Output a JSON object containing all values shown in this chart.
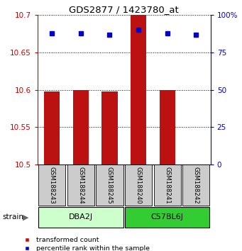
{
  "title": "GDS2877 / 1423780_at",
  "samples": [
    "GSM188243",
    "GSM188244",
    "GSM188245",
    "GSM188240",
    "GSM188241",
    "GSM188242"
  ],
  "transformed_counts": [
    10.598,
    10.6,
    10.598,
    10.7,
    10.6,
    10.5
  ],
  "percentile_ranks": [
    88,
    88,
    87,
    90,
    88,
    87
  ],
  "groups": [
    {
      "name": "DBA2J",
      "start": 0,
      "end": 2,
      "color": "#ccffcc"
    },
    {
      "name": "C57BL6J",
      "start": 3,
      "end": 5,
      "color": "#33cc33"
    }
  ],
  "ymin": 10.5,
  "ymax": 10.7,
  "yticks": [
    10.5,
    10.55,
    10.6,
    10.65,
    10.7
  ],
  "ytick_labels": [
    "10.5",
    "10.55",
    "10.6",
    "10.65",
    "10.7"
  ],
  "right_yticks": [
    0,
    25,
    50,
    75,
    100
  ],
  "right_ytick_labels": [
    "0",
    "25",
    "50",
    "75",
    "100%"
  ],
  "bar_color": "#bb1111",
  "dot_color": "#0000cc",
  "bar_width": 0.55,
  "group_label": "strain",
  "left_axis_color": "#cc0000",
  "right_axis_color": "#0000cc",
  "sample_bg_color": "#cccccc",
  "legend_items": [
    {
      "color": "#bb1111",
      "label": "transformed count"
    },
    {
      "color": "#0000cc",
      "label": "percentile rank within the sample"
    }
  ]
}
